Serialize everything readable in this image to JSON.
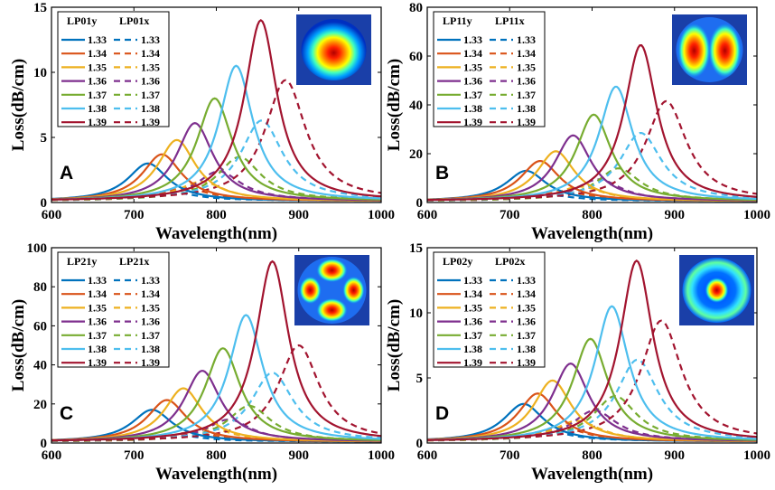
{
  "colors": [
    "#0072BD",
    "#D95319",
    "#EDB120",
    "#7E2F8E",
    "#77AC30",
    "#4DBEEE",
    "#A2142F"
  ],
  "chart_data": [
    {
      "type": "line",
      "panel_letter": "A",
      "xlabel": "Wavelength(nm)",
      "ylabel": "Loss(dB/cm)",
      "xlim": [
        600,
        1000
      ],
      "ylim": [
        0,
        15
      ],
      "xticks": [
        "600",
        "700",
        "800",
        "900",
        "1000"
      ],
      "yticks": [
        "0",
        "5",
        "10",
        "15"
      ],
      "legend_titles": [
        "LP01y",
        "LP01x"
      ],
      "legend_labels": [
        "1.33",
        "1.34",
        "1.35",
        "1.36",
        "1.37",
        "1.38",
        "1.39"
      ],
      "inset": "LP01 mode profile",
      "series_y": [
        {
          "name": "1.33",
          "peak_x": 717,
          "peak_y": 3.0,
          "hwhm": 30,
          "base": 0.1
        },
        {
          "name": "1.34",
          "peak_x": 734,
          "peak_y": 3.7,
          "hwhm": 29,
          "base": 0.1
        },
        {
          "name": "1.35",
          "peak_x": 752,
          "peak_y": 4.8,
          "hwhm": 28,
          "base": 0.1
        },
        {
          "name": "1.36",
          "peak_x": 774,
          "peak_y": 6.1,
          "hwhm": 27,
          "base": 0.1
        },
        {
          "name": "1.37",
          "peak_x": 798,
          "peak_y": 8.0,
          "hwhm": 26,
          "base": 0.1
        },
        {
          "name": "1.38",
          "peak_x": 824,
          "peak_y": 10.5,
          "hwhm": 25,
          "base": 0.1
        },
        {
          "name": "1.39",
          "peak_x": 854,
          "peak_y": 14.0,
          "hwhm": 24,
          "base": 0.1
        }
      ],
      "series_x": [
        {
          "name": "1.33",
          "peak_x": 745,
          "peak_y": 0.8,
          "hwhm": 36,
          "base": 0.15
        },
        {
          "name": "1.34",
          "peak_x": 762,
          "peak_y": 1.1,
          "hwhm": 35,
          "base": 0.15
        },
        {
          "name": "1.35",
          "peak_x": 782,
          "peak_y": 1.6,
          "hwhm": 34,
          "base": 0.15
        },
        {
          "name": "1.36",
          "peak_x": 803,
          "peak_y": 2.4,
          "hwhm": 33,
          "base": 0.15
        },
        {
          "name": "1.37",
          "peak_x": 828,
          "peak_y": 3.5,
          "hwhm": 32,
          "base": 0.15
        },
        {
          "name": "1.38",
          "peak_x": 855,
          "peak_y": 6.3,
          "hwhm": 31,
          "base": 0.15
        },
        {
          "name": "1.39",
          "peak_x": 884,
          "peak_y": 9.4,
          "hwhm": 30,
          "base": 0.15
        }
      ]
    },
    {
      "type": "line",
      "panel_letter": "B",
      "xlabel": "Wavelength(nm)",
      "ylabel": "Loss(dB/cm)",
      "xlim": [
        600,
        1000
      ],
      "ylim": [
        0,
        80
      ],
      "xticks": [
        "600",
        "700",
        "800",
        "900",
        "1000"
      ],
      "yticks": [
        "0",
        "20",
        "40",
        "60",
        "80"
      ],
      "legend_titles": [
        "LP11y",
        "LP11x"
      ],
      "legend_labels": [
        "1.33",
        "1.34",
        "1.35",
        "1.36",
        "1.37",
        "1.38",
        "1.39"
      ],
      "inset": "LP11 mode profile",
      "series_y": [
        {
          "name": "1.33",
          "peak_x": 720,
          "peak_y": 13,
          "hwhm": 30,
          "base": 0.5
        },
        {
          "name": "1.34",
          "peak_x": 737,
          "peak_y": 17,
          "hwhm": 29,
          "base": 0.5
        },
        {
          "name": "1.35",
          "peak_x": 756,
          "peak_y": 21,
          "hwhm": 28,
          "base": 0.5
        },
        {
          "name": "1.36",
          "peak_x": 777,
          "peak_y": 27.5,
          "hwhm": 27,
          "base": 0.5
        },
        {
          "name": "1.37",
          "peak_x": 802,
          "peak_y": 36,
          "hwhm": 26,
          "base": 0.5
        },
        {
          "name": "1.38",
          "peak_x": 829,
          "peak_y": 47.5,
          "hwhm": 25,
          "base": 0.5
        },
        {
          "name": "1.39",
          "peak_x": 859,
          "peak_y": 64.5,
          "hwhm": 24,
          "base": 0.5
        }
      ],
      "series_x": [
        {
          "name": "1.33",
          "peak_x": 748,
          "peak_y": 3,
          "hwhm": 36,
          "base": 0.7
        },
        {
          "name": "1.34",
          "peak_x": 766,
          "peak_y": 4.5,
          "hwhm": 35,
          "base": 0.7
        },
        {
          "name": "1.35",
          "peak_x": 786,
          "peak_y": 6.5,
          "hwhm": 34,
          "base": 0.7
        },
        {
          "name": "1.36",
          "peak_x": 808,
          "peak_y": 9.5,
          "hwhm": 33,
          "base": 0.7
        },
        {
          "name": "1.37",
          "peak_x": 832,
          "peak_y": 14,
          "hwhm": 32,
          "base": 0.7
        },
        {
          "name": "1.38",
          "peak_x": 859,
          "peak_y": 28.5,
          "hwhm": 31,
          "base": 0.7
        },
        {
          "name": "1.39",
          "peak_x": 890,
          "peak_y": 41.5,
          "hwhm": 30,
          "base": 0.7
        }
      ]
    },
    {
      "type": "line",
      "panel_letter": "C",
      "xlabel": "Wavelength(nm)",
      "ylabel": "Loss(dB/cm)",
      "xlim": [
        600,
        1000
      ],
      "ylim": [
        0,
        100
      ],
      "xticks": [
        "600",
        "700",
        "800",
        "900",
        "1000"
      ],
      "yticks": [
        "0",
        "20",
        "40",
        "60",
        "80",
        "100"
      ],
      "legend_titles": [
        "LP21y",
        "LP21x"
      ],
      "legend_labels": [
        "1.33",
        "1.34",
        "1.35",
        "1.36",
        "1.37",
        "1.38",
        "1.39"
      ],
      "inset": "LP21 mode profile",
      "series_y": [
        {
          "name": "1.33",
          "peak_x": 722,
          "peak_y": 17,
          "hwhm": 30,
          "base": 0.6
        },
        {
          "name": "1.34",
          "peak_x": 740,
          "peak_y": 22,
          "hwhm": 29,
          "base": 0.6
        },
        {
          "name": "1.35",
          "peak_x": 760,
          "peak_y": 28,
          "hwhm": 28,
          "base": 0.6
        },
        {
          "name": "1.36",
          "peak_x": 783,
          "peak_y": 37,
          "hwhm": 27,
          "base": 0.6
        },
        {
          "name": "1.37",
          "peak_x": 808,
          "peak_y": 48.5,
          "hwhm": 26,
          "base": 0.6
        },
        {
          "name": "1.38",
          "peak_x": 836,
          "peak_y": 65.5,
          "hwhm": 25,
          "base": 0.6
        },
        {
          "name": "1.39",
          "peak_x": 868,
          "peak_y": 93,
          "hwhm": 24,
          "base": 0.6
        }
      ],
      "series_x": [
        {
          "name": "1.33",
          "peak_x": 752,
          "peak_y": 4,
          "hwhm": 36,
          "base": 0.8
        },
        {
          "name": "1.34",
          "peak_x": 771,
          "peak_y": 5.5,
          "hwhm": 35,
          "base": 0.8
        },
        {
          "name": "1.35",
          "peak_x": 792,
          "peak_y": 7.5,
          "hwhm": 34,
          "base": 0.8
        },
        {
          "name": "1.36",
          "peak_x": 815,
          "peak_y": 12,
          "hwhm": 33,
          "base": 0.8
        },
        {
          "name": "1.37",
          "peak_x": 840,
          "peak_y": 19,
          "hwhm": 32,
          "base": 0.8
        },
        {
          "name": "1.38",
          "peak_x": 868,
          "peak_y": 36,
          "hwhm": 31,
          "base": 0.8
        },
        {
          "name": "1.39",
          "peak_x": 900,
          "peak_y": 50,
          "hwhm": 30,
          "base": 0.8
        }
      ]
    },
    {
      "type": "line",
      "panel_letter": "D",
      "xlabel": "Wavelength(nm)",
      "ylabel": "Loss(dB/cm)",
      "xlim": [
        600,
        1000
      ],
      "ylim": [
        0,
        15
      ],
      "xticks": [
        "600",
        "700",
        "800",
        "900",
        "1000"
      ],
      "yticks": [
        "0",
        "5",
        "10",
        "15"
      ],
      "legend_titles": [
        "LP02y",
        "LP02x"
      ],
      "legend_labels": [
        "1.33",
        "1.34",
        "1.35",
        "1.36",
        "1.37",
        "1.38",
        "1.39"
      ],
      "inset": "LP02 mode profile",
      "series_y": [
        {
          "name": "1.33",
          "peak_x": 717,
          "peak_y": 3.0,
          "hwhm": 30,
          "base": 0.1
        },
        {
          "name": "1.34",
          "peak_x": 734,
          "peak_y": 3.8,
          "hwhm": 29,
          "base": 0.1
        },
        {
          "name": "1.35",
          "peak_x": 752,
          "peak_y": 4.8,
          "hwhm": 28,
          "base": 0.1
        },
        {
          "name": "1.36",
          "peak_x": 774,
          "peak_y": 6.1,
          "hwhm": 27,
          "base": 0.1
        },
        {
          "name": "1.37",
          "peak_x": 798,
          "peak_y": 8.0,
          "hwhm": 26,
          "base": 0.1
        },
        {
          "name": "1.38",
          "peak_x": 824,
          "peak_y": 10.5,
          "hwhm": 25,
          "base": 0.1
        },
        {
          "name": "1.39",
          "peak_x": 854,
          "peak_y": 14.0,
          "hwhm": 24,
          "base": 0.1
        }
      ],
      "series_x": [
        {
          "name": "1.33",
          "peak_x": 745,
          "peak_y": 0.9,
          "hwhm": 36,
          "base": 0.15
        },
        {
          "name": "1.34",
          "peak_x": 762,
          "peak_y": 1.2,
          "hwhm": 35,
          "base": 0.15
        },
        {
          "name": "1.35",
          "peak_x": 782,
          "peak_y": 1.7,
          "hwhm": 34,
          "base": 0.15
        },
        {
          "name": "1.36",
          "peak_x": 803,
          "peak_y": 2.5,
          "hwhm": 33,
          "base": 0.15
        },
        {
          "name": "1.37",
          "peak_x": 828,
          "peak_y": 3.6,
          "hwhm": 32,
          "base": 0.15
        },
        {
          "name": "1.38",
          "peak_x": 855,
          "peak_y": 6.4,
          "hwhm": 31,
          "base": 0.15
        },
        {
          "name": "1.39",
          "peak_x": 884,
          "peak_y": 9.4,
          "hwhm": 30,
          "base": 0.15
        }
      ]
    }
  ]
}
